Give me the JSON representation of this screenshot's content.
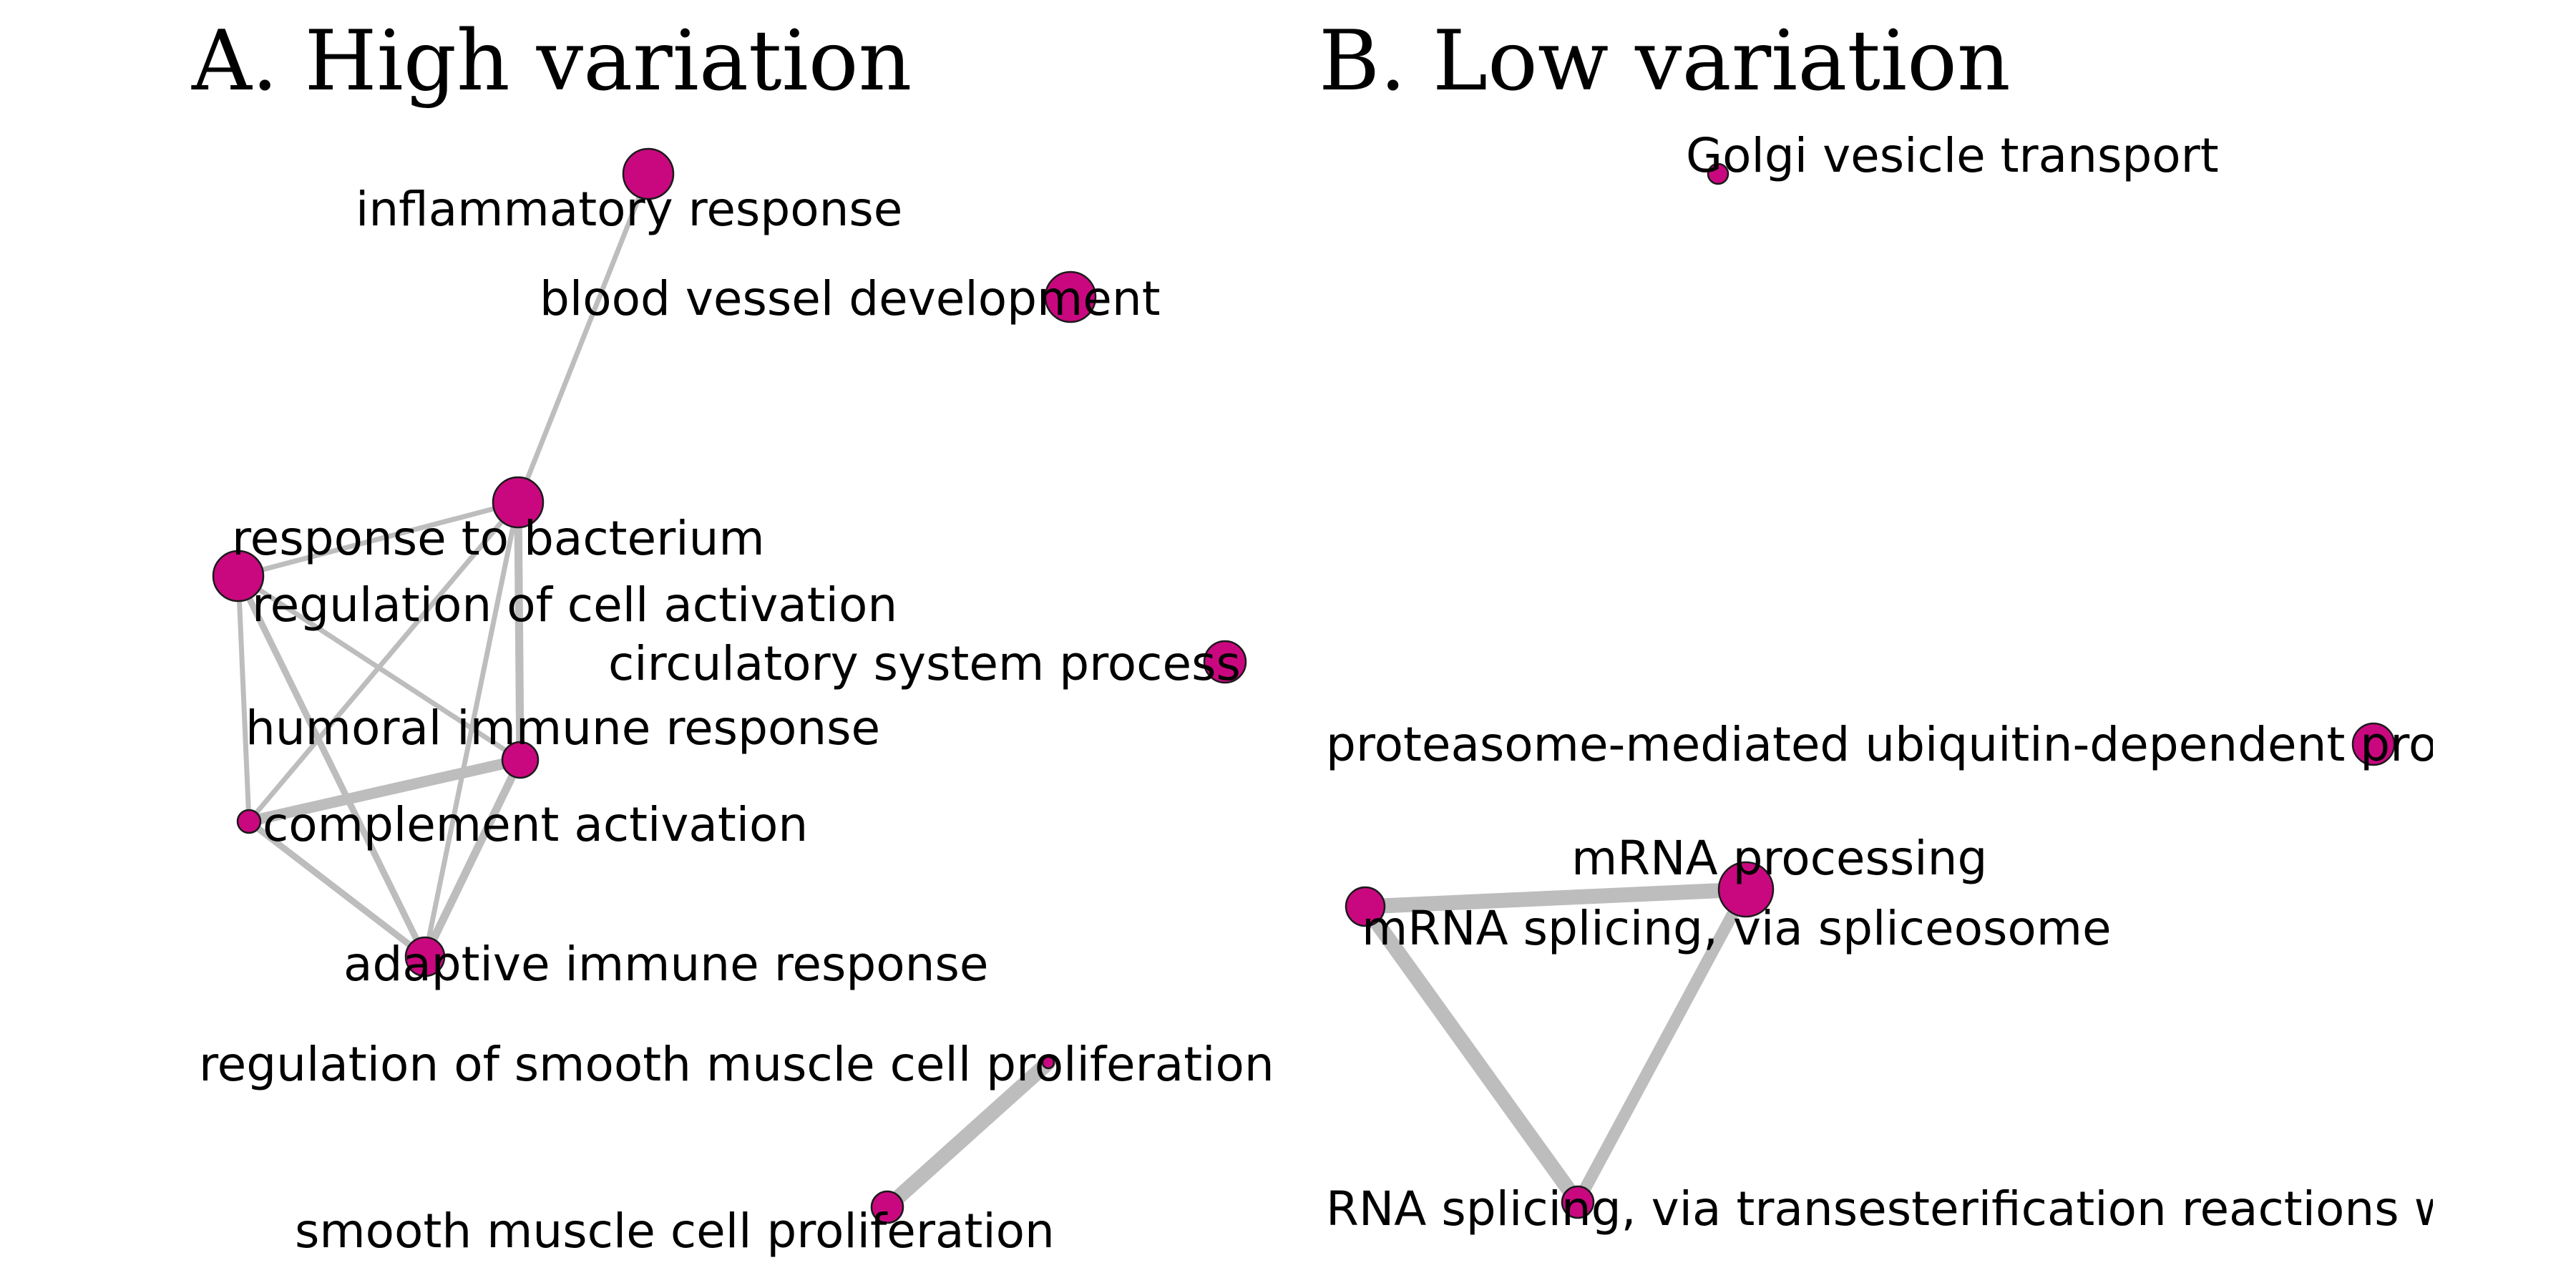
{
  "colors": {
    "node_fill": "#c9087f",
    "edge": "#bdbdbd",
    "text": "#000000"
  },
  "panels": [
    {
      "id": "A",
      "title": "A. High variation",
      "nodes": [
        {
          "id": "inflammatory_response",
          "label": "inflammatory response"
        },
        {
          "id": "blood_vessel_development",
          "label": "blood vessel development"
        },
        {
          "id": "response_to_bacterium",
          "label": "response to bacterium"
        },
        {
          "id": "regulation_of_cell_activation",
          "label": "regulation of cell activation"
        },
        {
          "id": "circulatory_system_process",
          "label": "circulatory system process"
        },
        {
          "id": "humoral_immune_response",
          "label": "humoral immune response"
        },
        {
          "id": "complement_activation",
          "label": "complement activation"
        },
        {
          "id": "adaptive_immune_response",
          "label": "adaptive immune response"
        },
        {
          "id": "regulation_of_smooth_muscle_cell_proliferation",
          "label": "regulation of smooth muscle cell proliferation"
        },
        {
          "id": "smooth_muscle_cell_proliferation",
          "label": "smooth muscle cell proliferation"
        }
      ],
      "edges": [
        {
          "source": "inflammatory_response",
          "target": "response_to_bacterium",
          "weight": 1
        },
        {
          "source": "response_to_bacterium",
          "target": "regulation_of_cell_activation",
          "weight": 1
        },
        {
          "source": "response_to_bacterium",
          "target": "humoral_immune_response",
          "weight": 1.6
        },
        {
          "source": "response_to_bacterium",
          "target": "complement_activation",
          "weight": 1
        },
        {
          "source": "response_to_bacterium",
          "target": "adaptive_immune_response",
          "weight": 1
        },
        {
          "source": "regulation_of_cell_activation",
          "target": "humoral_immune_response",
          "weight": 1
        },
        {
          "source": "regulation_of_cell_activation",
          "target": "complement_activation",
          "weight": 1
        },
        {
          "source": "regulation_of_cell_activation",
          "target": "adaptive_immune_response",
          "weight": 1.3
        },
        {
          "source": "humoral_immune_response",
          "target": "complement_activation",
          "weight": 2.2
        },
        {
          "source": "humoral_immune_response",
          "target": "adaptive_immune_response",
          "weight": 1.6
        },
        {
          "source": "complement_activation",
          "target": "adaptive_immune_response",
          "weight": 1.3
        },
        {
          "source": "regulation_of_smooth_muscle_cell_proliferation",
          "target": "smooth_muscle_cell_proliferation",
          "weight": 3
        }
      ]
    },
    {
      "id": "B",
      "title": "B. Low variation",
      "nodes": [
        {
          "id": "golgi_vesicle_transport",
          "label": "Golgi vesicle transport"
        },
        {
          "id": "proteasome_mediated",
          "label": "proteasome-mediated ubiquitin-dependent prote"
        },
        {
          "id": "mrna_processing",
          "label": "mRNA processing"
        },
        {
          "id": "mrna_splicing_spliceosome",
          "label": "mRNA splicing, via spliceosome"
        },
        {
          "id": "rna_splicing_transesterification",
          "label": "RNA splicing, via transesterification reactions wi"
        }
      ],
      "edges": [
        {
          "source": "mrna_processing",
          "target": "mrna_splicing_spliceosome",
          "weight": 3
        },
        {
          "source": "mrna_processing",
          "target": "rna_splicing_transesterification",
          "weight": 2.4
        },
        {
          "source": "mrna_splicing_spliceosome",
          "target": "rna_splicing_transesterification",
          "weight": 3
        }
      ]
    }
  ]
}
